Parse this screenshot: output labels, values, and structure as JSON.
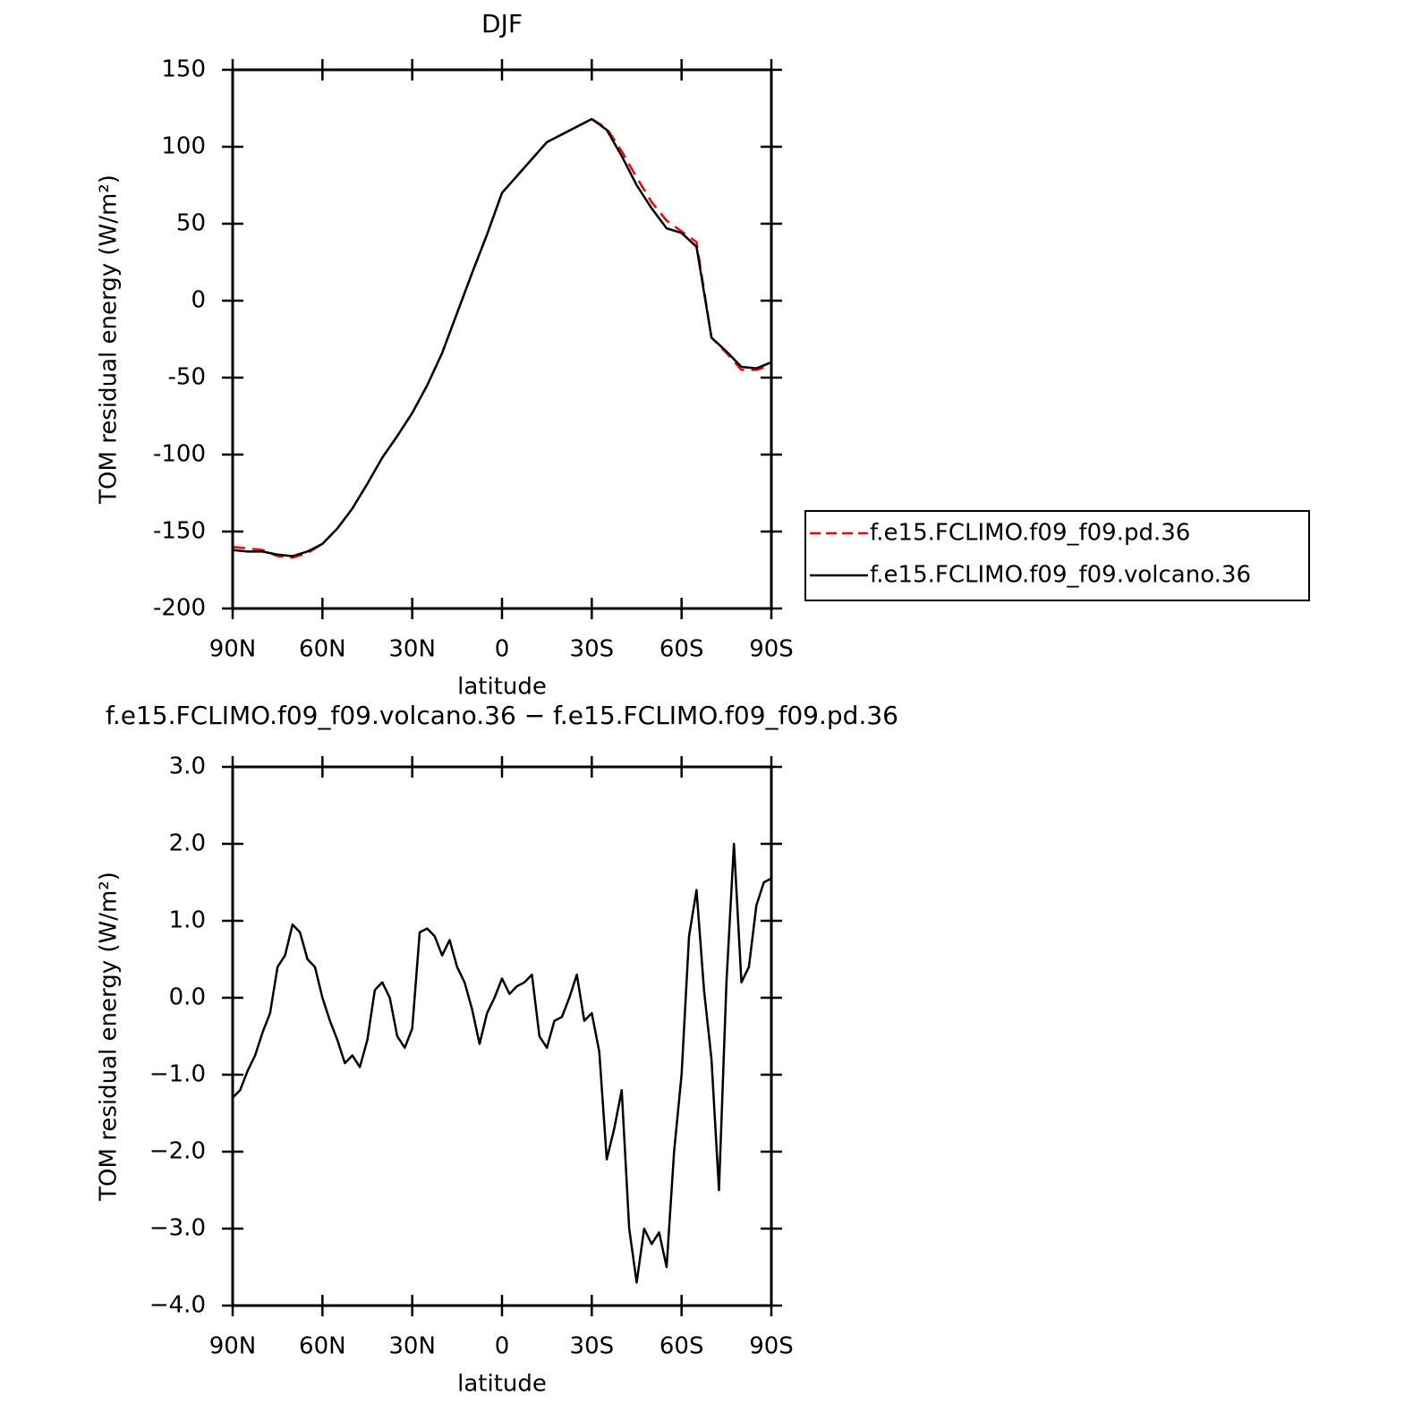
{
  "chart_data": [
    {
      "type": "line",
      "title": "DJF",
      "xlabel": "latitude",
      "ylabel": "TOM residual energy (W/m²)",
      "x": [
        90,
        85,
        80,
        75,
        70,
        65,
        60,
        55,
        50,
        45,
        40,
        35,
        30,
        25,
        20,
        15,
        10,
        5,
        0,
        -5,
        -10,
        -15,
        -20,
        -25,
        -30,
        -35,
        -40,
        -45,
        -50,
        -55,
        -60,
        -65,
        -70,
        -75,
        -80,
        -85,
        -90
      ],
      "series": [
        {
          "name": "f.e15.FCLIMO.f09_f09.pd.36",
          "color": "#ff0000",
          "style": "dashed",
          "values": [
            -160,
            -161,
            -162,
            -166,
            -167,
            -164,
            -158,
            -148,
            -135,
            -119,
            -102,
            -88,
            -73,
            -55,
            -34,
            -8,
            18,
            43,
            70,
            81,
            92,
            103,
            108,
            113,
            118,
            112,
            97,
            80,
            64,
            52,
            45,
            38,
            -24,
            -34,
            -45,
            -45,
            -42
          ]
        },
        {
          "name": "f.e15.FCLIMO.f09_f09.volcano.36",
          "color": "#000000",
          "style": "solid",
          "values": [
            -162,
            -163,
            -163,
            -165,
            -166,
            -163,
            -158,
            -148,
            -135,
            -119,
            -102,
            -88,
            -73,
            -55,
            -34,
            -8,
            18,
            43,
            70,
            81,
            92,
            103,
            108,
            113,
            118,
            111,
            94,
            75,
            60,
            47,
            44,
            35,
            -24,
            -33,
            -43,
            -44,
            -40
          ]
        }
      ],
      "xlim": [
        90,
        -90
      ],
      "xticks": [
        {
          "value": 90,
          "label": "90N"
        },
        {
          "value": 60,
          "label": "60N"
        },
        {
          "value": 30,
          "label": "30N"
        },
        0,
        {
          "value": -30,
          "label": "30S"
        },
        {
          "value": -60,
          "label": "60S"
        },
        {
          "value": -90,
          "label": "90S"
        }
      ],
      "ylim": [
        -200,
        150
      ],
      "yticks": [
        -200,
        -150,
        -100,
        -50,
        0,
        50,
        100,
        150
      ],
      "legend": "outside-right"
    },
    {
      "type": "line",
      "title": "f.e15.FCLIMO.f09_f09.volcano.36 − f.e15.FCLIMO.f09_f09.pd.36",
      "xlabel": "latitude",
      "ylabel": "TOM residual energy (W/m²)",
      "x": [
        90,
        87.5,
        85,
        82.5,
        80,
        77.5,
        75,
        72.5,
        70,
        67.5,
        65,
        62.5,
        60,
        57.5,
        55,
        52.5,
        50,
        47.5,
        45,
        42.5,
        40,
        37.5,
        35,
        32.5,
        30,
        27.5,
        25,
        22.5,
        20,
        17.5,
        15,
        12.5,
        10,
        7.5,
        5,
        2.5,
        0,
        -2.5,
        -5,
        -7.5,
        -10,
        -12.5,
        -15,
        -17.5,
        -20,
        -22.5,
        -25,
        -27.5,
        -30,
        -32.5,
        -35,
        -37.5,
        -40,
        -42.5,
        -45,
        -47.5,
        -50,
        -52.5,
        -55,
        -57.5,
        -60,
        -62.5,
        -65,
        -67.5,
        -70,
        -72.5,
        -75,
        -77.5,
        -80,
        -82.5,
        -85,
        -87.5,
        -90
      ],
      "series": [
        {
          "name": "f.e15.FCLIMO.f09_f09.volcano.36 − f.e15.FCLIMO.f09_f09.pd.36",
          "color": "#000000",
          "style": "solid",
          "values": [
            -1.3,
            -1.2,
            -0.95,
            -0.75,
            -0.45,
            -0.2,
            0.4,
            0.55,
            0.95,
            0.85,
            0.5,
            0.4,
            0.0,
            -0.3,
            -0.55,
            -0.85,
            -0.75,
            -0.9,
            -0.55,
            0.1,
            0.2,
            0.0,
            -0.5,
            -0.65,
            -0.4,
            0.85,
            0.9,
            0.8,
            0.55,
            0.75,
            0.4,
            0.2,
            -0.15,
            -0.6,
            -0.2,
            0.0,
            0.25,
            0.05,
            0.15,
            0.2,
            0.3,
            -0.5,
            -0.65,
            -0.3,
            -0.25,
            0.0,
            0.3,
            -0.3,
            -0.2,
            -0.7,
            -2.1,
            -1.7,
            -1.2,
            -3.0,
            -3.7,
            -3.0,
            -3.2,
            -3.05,
            -3.5,
            -2.0,
            -1.0,
            0.8,
            1.4,
            0.1,
            -0.8,
            -2.5,
            0.2,
            2.0,
            0.2,
            0.4,
            1.2,
            1.5,
            1.55
          ]
        }
      ],
      "xlim": [
        90,
        -90
      ],
      "xticks": [
        {
          "value": 90,
          "label": "90N"
        },
        {
          "value": 60,
          "label": "60N"
        },
        {
          "value": 30,
          "label": "30N"
        },
        0,
        {
          "value": -30,
          "label": "30S"
        },
        {
          "value": -60,
          "label": "60S"
        },
        {
          "value": -90,
          "label": "90S"
        }
      ],
      "ylim": [
        -4,
        3
      ],
      "yticks": [
        {
          "value": -4,
          "label": "−4.0"
        },
        {
          "value": -3,
          "label": "−3.0"
        },
        {
          "value": -2,
          "label": "−2.0"
        },
        {
          "value": -1,
          "label": "−1.0"
        },
        {
          "value": 0,
          "label": "0.0"
        },
        {
          "value": 1,
          "label": "1.0"
        },
        {
          "value": 2,
          "label": "2.0"
        },
        {
          "value": 3,
          "label": "3.0"
        }
      ]
    }
  ]
}
